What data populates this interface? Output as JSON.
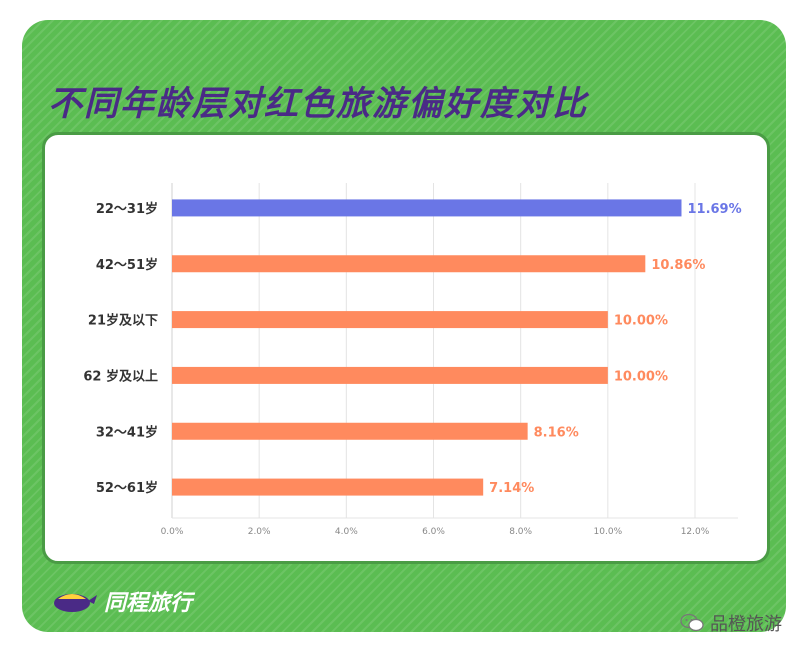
{
  "title": "不同年龄层对红色旅游偏好度对比",
  "brand": {
    "name": "同程旅行",
    "icon": "tongcheng-logo-icon"
  },
  "watermark": {
    "text": "品橙旅游",
    "icon": "wechat-icon"
  },
  "colors": {
    "highlight": "#6a76e6",
    "bar": "#ff8a5e",
    "background": "#5bbd52",
    "title": "#4a2a86"
  },
  "chart_data": {
    "type": "bar",
    "orientation": "horizontal",
    "categories": [
      "22～31岁",
      "42～51岁",
      "21岁及以下",
      "62 岁及以上",
      "32～41岁",
      "52～61岁"
    ],
    "values": [
      11.69,
      10.86,
      10.0,
      10.0,
      8.16,
      7.14
    ],
    "value_labels": [
      "11.69%",
      "10.86%",
      "10.00%",
      "10.00%",
      "8.16%",
      "7.14%"
    ],
    "highlight_index": 0,
    "xlim": [
      0,
      12
    ],
    "x_ticks": [
      "0.0%",
      "2.0%",
      "4.0%",
      "6.0%",
      "8.0%",
      "10.0%",
      "12.0%"
    ],
    "grid": true,
    "legend": "none"
  }
}
